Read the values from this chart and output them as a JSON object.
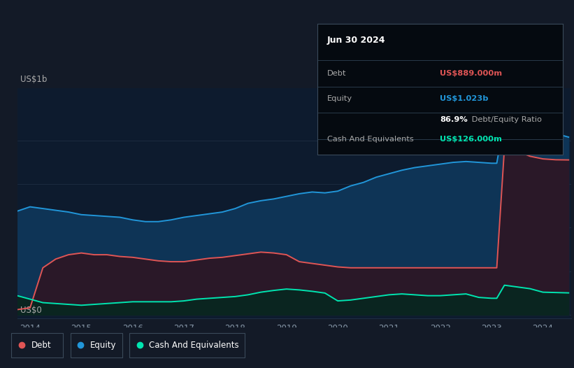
{
  "bg_color": "#131a27",
  "plot_bg_color": "#0d1b2e",
  "grid_color": "#1e2d42",
  "title_date": "Jun 30 2024",
  "ylabel_top": "US$1b",
  "ylabel_bottom": "US$0",
  "xlabel_ticks": [
    "2014",
    "2015",
    "2016",
    "2017",
    "2018",
    "2019",
    "2020",
    "2021",
    "2022",
    "2023",
    "2024"
  ],
  "equity_color": "#2196d9",
  "equity_fill": "#0e3456",
  "debt_color": "#e05555",
  "debt_fill": "#2a1828",
  "cash_color": "#00e5b0",
  "cash_fill": "#0a2520",
  "years": [
    2013.75,
    2014.0,
    2014.25,
    2014.5,
    2014.75,
    2015.0,
    2015.25,
    2015.5,
    2015.75,
    2016.0,
    2016.25,
    2016.5,
    2016.75,
    2017.0,
    2017.25,
    2017.5,
    2017.75,
    2018.0,
    2018.25,
    2018.5,
    2018.75,
    2019.0,
    2019.25,
    2019.5,
    2019.75,
    2020.0,
    2020.25,
    2020.5,
    2020.75,
    2021.0,
    2021.25,
    2021.5,
    2021.75,
    2022.0,
    2022.25,
    2022.5,
    2022.75,
    2023.0,
    2023.1,
    2023.25,
    2023.5,
    2023.75,
    2024.0,
    2024.25,
    2024.5
  ],
  "equity": [
    0.595,
    0.62,
    0.61,
    0.6,
    0.59,
    0.575,
    0.57,
    0.565,
    0.56,
    0.545,
    0.535,
    0.535,
    0.545,
    0.56,
    0.57,
    0.58,
    0.59,
    0.61,
    0.64,
    0.655,
    0.665,
    0.68,
    0.695,
    0.705,
    0.7,
    0.71,
    0.74,
    0.76,
    0.79,
    0.81,
    0.83,
    0.845,
    0.855,
    0.865,
    0.875,
    0.88,
    0.875,
    0.87,
    0.87,
    1.12,
    1.1,
    1.08,
    1.06,
    1.04,
    1.02
  ],
  "debt": [
    0.03,
    0.04,
    0.27,
    0.32,
    0.345,
    0.355,
    0.345,
    0.345,
    0.335,
    0.33,
    0.32,
    0.31,
    0.305,
    0.305,
    0.315,
    0.325,
    0.33,
    0.34,
    0.35,
    0.36,
    0.355,
    0.345,
    0.305,
    0.295,
    0.285,
    0.275,
    0.27,
    0.27,
    0.27,
    0.27,
    0.27,
    0.27,
    0.27,
    0.27,
    0.27,
    0.27,
    0.27,
    0.27,
    0.27,
    0.96,
    0.94,
    0.91,
    0.895,
    0.89,
    0.889
  ],
  "cash": [
    0.11,
    0.09,
    0.07,
    0.065,
    0.06,
    0.055,
    0.06,
    0.065,
    0.07,
    0.075,
    0.075,
    0.075,
    0.075,
    0.08,
    0.09,
    0.095,
    0.1,
    0.105,
    0.115,
    0.13,
    0.14,
    0.148,
    0.143,
    0.135,
    0.125,
    0.08,
    0.085,
    0.095,
    0.105,
    0.115,
    0.12,
    0.115,
    0.11,
    0.11,
    0.115,
    0.12,
    0.1,
    0.095,
    0.095,
    0.17,
    0.16,
    0.15,
    0.13,
    0.128,
    0.126
  ],
  "info_box_date": "Jun 30 2024",
  "info_rows": [
    {
      "label": "Debt",
      "value": "US$889.000m",
      "label_color": "#aaaaaa",
      "value_color": "#e05555"
    },
    {
      "label": "Equity",
      "value": "US$1.023b",
      "label_color": "#aaaaaa",
      "value_color": "#2196d9"
    },
    {
      "label": "",
      "value": "86.9%",
      "label_color": "#aaaaaa",
      "value_color": "#ffffff",
      "suffix": " Debt/Equity Ratio",
      "suffix_color": "#aaaaaa"
    },
    {
      "label": "Cash And Equivalents",
      "value": "US$126.000m",
      "label_color": "#aaaaaa",
      "value_color": "#00e5b0"
    }
  ],
  "legend": [
    {
      "label": "Debt",
      "color": "#e05555"
    },
    {
      "label": "Equity",
      "color": "#2196d9"
    },
    {
      "label": "Cash And Equivalents",
      "color": "#00e5b0"
    }
  ]
}
